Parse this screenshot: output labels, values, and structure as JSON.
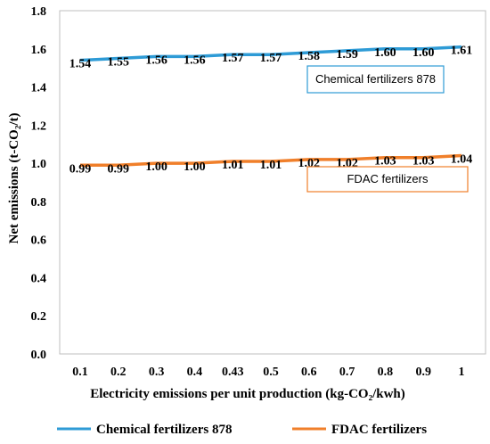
{
  "chart_data": {
    "type": "line",
    "title": "",
    "xlabel": "Electricity emissions per unit production (kg-CO₂/kwh)",
    "ylabel": "Net emissions (t-CO₂/t)",
    "categories": [
      "0.1",
      "0.2",
      "0.3",
      "0.4",
      "0.43",
      "0.5",
      "0.6",
      "0.7",
      "0.8",
      "0.9",
      "1"
    ],
    "ylim": [
      0,
      1.8
    ],
    "yticks": [
      "0.0",
      "0.2",
      "0.4",
      "0.6",
      "0.8",
      "1.0",
      "1.2",
      "1.4",
      "1.6",
      "1.8"
    ],
    "grid": false,
    "legend_position": "bottom",
    "series": [
      {
        "name": "Chemical fertilizers 878",
        "color": "#2e9bd6",
        "values": [
          1.54,
          1.55,
          1.56,
          1.56,
          1.57,
          1.57,
          1.58,
          1.59,
          1.6,
          1.6,
          1.61
        ],
        "labels": [
          "1.54",
          "1.55",
          "1.56",
          "1.56",
          "1.57",
          "1.57",
          "1.58",
          "1.59",
          "1.60",
          "1.60",
          "1.61"
        ]
      },
      {
        "name": "FDAC fertilizers",
        "color": "#f07f2a",
        "values": [
          0.99,
          0.99,
          1.0,
          1.0,
          1.01,
          1.01,
          1.02,
          1.02,
          1.03,
          1.03,
          1.04
        ],
        "labels": [
          "0.99",
          "0.99",
          "1.00",
          "1.00",
          "1.01",
          "1.01",
          "1.02",
          "1.02",
          "1.03",
          "1.03",
          "1.04"
        ]
      }
    ],
    "annotations": [
      {
        "text": "Chemical fertilizers 878",
        "border_color": "#2e9bd6",
        "series": 0
      },
      {
        "text": "FDAC fertilizers",
        "border_color": "#f07f2a",
        "series": 1
      }
    ]
  }
}
